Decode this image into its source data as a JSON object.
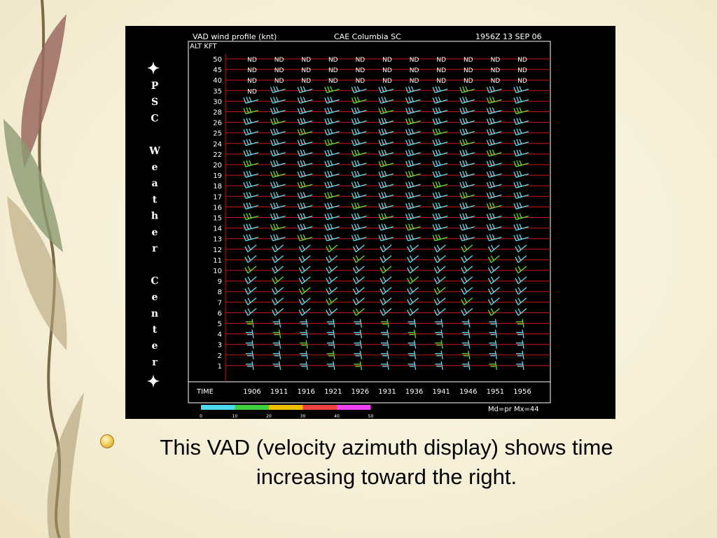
{
  "slide": {
    "bullet_text": "This VAD (velocity azimuth display) shows time increasing toward the right."
  },
  "vad": {
    "title": "VAD wind profile (knt)",
    "station": "CAE Columbia SC",
    "valid_time": "1956Z 13 SEP 06",
    "alt_label": "ALT KFT",
    "time_label": "TIME",
    "altitudes": [
      "50",
      "45",
      "40",
      "35",
      "30",
      "28",
      "26",
      "25",
      "24",
      "22",
      "20",
      "19",
      "18",
      "17",
      "16",
      "15",
      "14",
      "13",
      "12",
      "11",
      "10",
      "9",
      "8",
      "7",
      "6",
      "5",
      "4",
      "3",
      "2",
      "1"
    ],
    "times": [
      "1906",
      "1911",
      "1916",
      "1921",
      "1926",
      "1931",
      "1936",
      "1941",
      "1946",
      "1951",
      "1956"
    ],
    "nd_label": "ND",
    "nd_levels": 3,
    "side_text": "PSC Weather Center",
    "side_letters": [
      "P",
      "S",
      "C",
      "W",
      "e",
      "a",
      "t",
      "h",
      "e",
      "r",
      "C",
      "e",
      "n",
      "t",
      "e",
      "r"
    ],
    "mode_text": "Md=pr Mx=44",
    "color_scale": {
      "labels": [
        "0",
        "10",
        "20",
        "30",
        "40",
        "50"
      ],
      "colors": [
        "#4dd8f0",
        "#40d040",
        "#f0c000",
        "#f04040",
        "#f040f0"
      ]
    },
    "colors": {
      "grid": "#c81818",
      "barb_cyan": "#5fe0f0",
      "barb_green": "#60e040",
      "frame": "#ffffff"
    }
  }
}
